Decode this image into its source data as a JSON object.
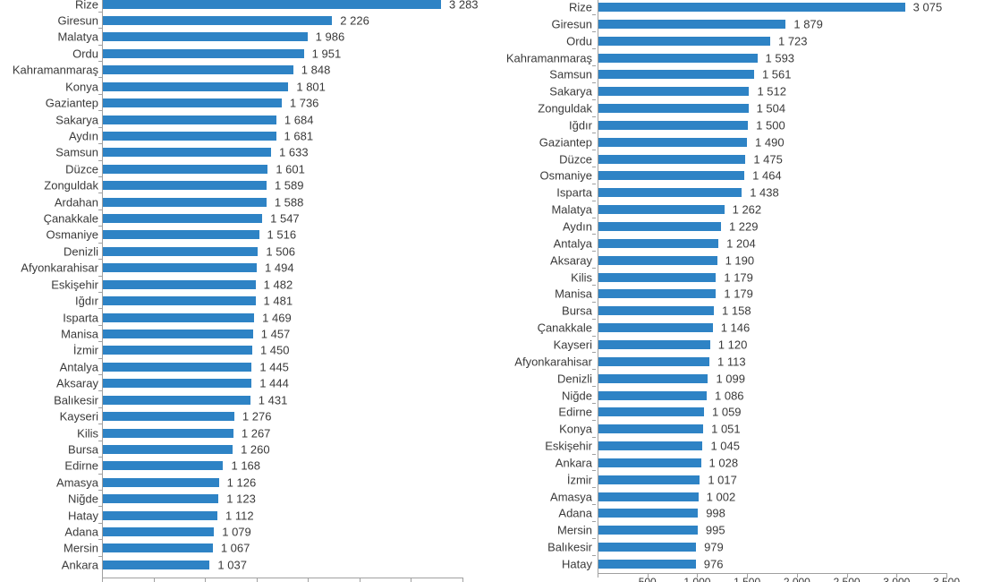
{
  "page": {
    "background_color": "#ffffff",
    "text_color": "#3a3a3a",
    "axis_color": "#a0a0a0"
  },
  "chart_data": [
    {
      "id": "left",
      "type": "bar",
      "orientation": "horizontal",
      "bar_color": "#2e83c5",
      "title": "",
      "xlabel": "",
      "ylabel": "",
      "xlim": [
        0,
        3500
      ],
      "x_tick_interval": 500,
      "x_ticks_visible": true,
      "x_tick_labels_visible": false,
      "x_tick_labels": [],
      "grid": false,
      "legend": false,
      "categories": [
        "Rize",
        "Giresun",
        "Malatya",
        "Ordu",
        "Kahramanmaraş",
        "Konya",
        "Gaziantep",
        "Sakarya",
        "Aydın",
        "Samsun",
        "Düzce",
        "Zonguldak",
        "Ardahan",
        "Çanakkale",
        "Osmaniye",
        "Denizli",
        "Afyonkarahisar",
        "Eskişehir",
        "Iğdır",
        "Isparta",
        "Manisa",
        "İzmir",
        "Antalya",
        "Aksaray",
        "Balıkesir",
        "Kayseri",
        "Kilis",
        "Bursa",
        "Edirne",
        "Amasya",
        "Niğde",
        "Hatay",
        "Adana",
        "Mersin",
        "Ankara"
      ],
      "values": [
        3283,
        2226,
        1986,
        1951,
        1848,
        1801,
        1736,
        1684,
        1681,
        1633,
        1601,
        1589,
        1588,
        1547,
        1516,
        1506,
        1494,
        1482,
        1481,
        1469,
        1457,
        1450,
        1445,
        1444,
        1431,
        1276,
        1267,
        1260,
        1168,
        1126,
        1123,
        1112,
        1079,
        1067,
        1037
      ],
      "value_labels": [
        "3 283",
        "2 226",
        "1 986",
        "1 951",
        "1 848",
        "1 801",
        "1 736",
        "1 684",
        "1 681",
        "1 633",
        "1 601",
        "1 589",
        "1 588",
        "1 547",
        "1 516",
        "1 506",
        "1 494",
        "1 482",
        "1 481",
        "1 469",
        "1 457",
        "1 450",
        "1 445",
        "1 444",
        "1 431",
        "1 276",
        "1 267",
        "1 260",
        "1 168",
        "1 126",
        "1 123",
        "1 112",
        "1 079",
        "1 067",
        "1 037"
      ]
    },
    {
      "id": "right",
      "type": "bar",
      "orientation": "horizontal",
      "bar_color": "#2e83c5",
      "title": "",
      "xlabel": "",
      "ylabel": "",
      "xlim": [
        0,
        3500
      ],
      "x_tick_interval": 500,
      "x_ticks_visible": true,
      "x_tick_labels_visible": true,
      "x_tick_labels": [
        "500",
        "1 000",
        "1 500",
        "2 000",
        "2 500",
        "3 000",
        "3 500"
      ],
      "grid": false,
      "legend": false,
      "categories": [
        "Rize",
        "Giresun",
        "Ordu",
        "Kahramanmaraş",
        "Samsun",
        "Sakarya",
        "Zonguldak",
        "Iğdır",
        "Gaziantep",
        "Düzce",
        "Osmaniye",
        "Isparta",
        "Malatya",
        "Aydın",
        "Antalya",
        "Aksaray",
        "Kilis",
        "Manisa",
        "Bursa",
        "Çanakkale",
        "Kayseri",
        "Afyonkarahisar",
        "Denizli",
        "Niğde",
        "Edirne",
        "Konya",
        "Eskişehir",
        "Ankara",
        "İzmir",
        "Amasya",
        "Adana",
        "Mersin",
        "Balıkesir",
        "Hatay"
      ],
      "values": [
        3075,
        1879,
        1723,
        1593,
        1561,
        1512,
        1504,
        1500,
        1490,
        1475,
        1464,
        1438,
        1262,
        1229,
        1204,
        1190,
        1179,
        1179,
        1158,
        1146,
        1120,
        1113,
        1099,
        1086,
        1059,
        1051,
        1045,
        1028,
        1017,
        1002,
        998,
        995,
        979,
        976
      ],
      "value_labels": [
        "3 075",
        "1 879",
        "1 723",
        "1 593",
        "1 561",
        "1 512",
        "1 504",
        "1 500",
        "1 490",
        "1 475",
        "1 464",
        "1 438",
        "1 262",
        "1 229",
        "1 204",
        "1 190",
        "1 179",
        "1 179",
        "1 158",
        "1 146",
        "1 120",
        "1 113",
        "1 099",
        "1 086",
        "1 059",
        "1 051",
        "1 045",
        "1 028",
        "1 017",
        "1 002",
        "998",
        "995",
        "979",
        "976"
      ]
    }
  ]
}
